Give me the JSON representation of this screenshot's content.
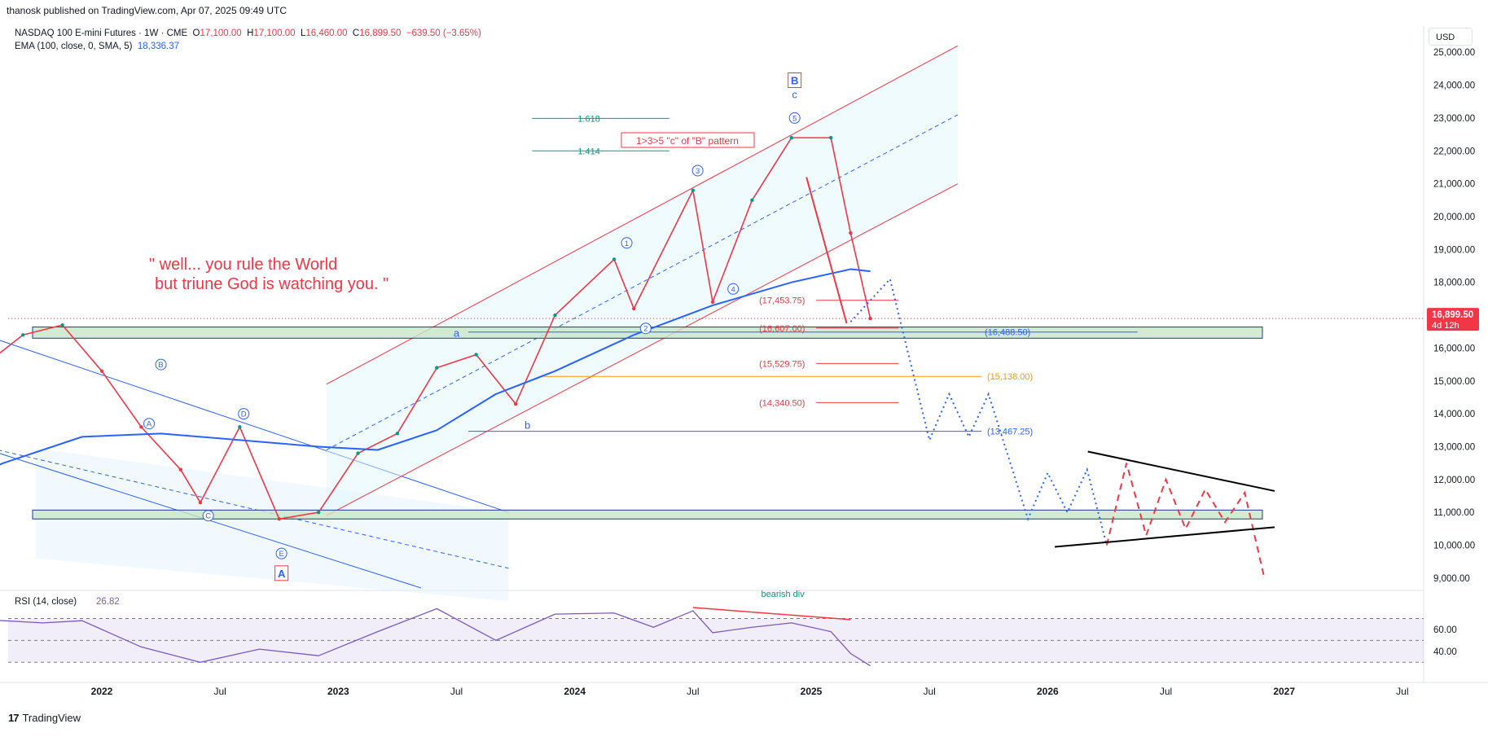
{
  "header": {
    "published": "thanosk published on TradingView.com, Apr 07, 2025 09:49 UTC",
    "symbol": "NASDAQ 100 E-mini Futures · 1W · CME",
    "open_label": "O",
    "open": "17,100.00",
    "high_label": "H",
    "high": "17,100.00",
    "low_label": "L",
    "low": "16,460.00",
    "close_label": "C",
    "close": "16,899.50",
    "change": "−639.50 (−3.65%)",
    "ema_label": "EMA (100, close, 0, SMA, 5)",
    "ema_value": "18,336.37",
    "currency": "USD"
  },
  "price_tag": {
    "price": "16,899.50",
    "countdown": "4d 12h"
  },
  "brand": {
    "logo": "17",
    "name": "TradingView"
  },
  "colors": {
    "up": "#089981",
    "down": "#f23645",
    "ema": "#2962ff",
    "channel": "#f23645",
    "rsi": "#7e57c2",
    "zone_fill": "#c8e6c9"
  },
  "chart_data": {
    "type": "line",
    "y_axis_ticks": [
      "25,000.00",
      "24,000.00",
      "23,000.00",
      "22,000.00",
      "21,000.00",
      "20,000.00",
      "19,000.00",
      "18,000.00",
      "17,000.00",
      "16,000.00",
      "15,000.00",
      "14,000.00",
      "13,000.00",
      "12,000.00",
      "11,000.00",
      "10,000.00",
      "9,000.00"
    ],
    "ylim": [
      8700,
      25600
    ],
    "x_axis_ticks": [
      "2022",
      "Jul",
      "2023",
      "Jul",
      "2024",
      "Jul",
      "2025",
      "Jul",
      "2026",
      "Jul",
      "2027",
      "Jul"
    ],
    "price_path": {
      "x": [
        "2021-06",
        "2021-09",
        "2021-11",
        "2022-01",
        "2022-03",
        "2022-05",
        "2022-06",
        "2022-08",
        "2022-10",
        "2022-12",
        "2023-02",
        "2023-04",
        "2023-06",
        "2023-08",
        "2023-10",
        "2023-12",
        "2024-03",
        "2024-04",
        "2024-07",
        "2024-08",
        "2024-10",
        "2024-12",
        "2025-02",
        "2025-03",
        "2025-04"
      ],
      "y": [
        15000,
        16400,
        16700,
        15300,
        13600,
        12300,
        11300,
        13600,
        10800,
        11000,
        12800,
        13400,
        15400,
        15800,
        14300,
        17000,
        18700,
        17200,
        20800,
        17400,
        20500,
        22400,
        22400,
        19500,
        16899.5
      ]
    },
    "ema_path": {
      "x": [
        "2021-04",
        "2021-08",
        "2021-12",
        "2022-04",
        "2022-08",
        "2022-12",
        "2023-03",
        "2023-06",
        "2023-09",
        "2023-12",
        "2024-04",
        "2024-08",
        "2024-12",
        "2025-03",
        "2025-04"
      ],
      "y": [
        11500,
        12500,
        13300,
        13400,
        13200,
        13000,
        12900,
        13500,
        14600,
        15300,
        16400,
        17300,
        18000,
        18400,
        18336.37
      ]
    },
    "levels": [
      {
        "label": "(17,453.75)",
        "value": 17453.75,
        "color": "#f23645"
      },
      {
        "label": "(16,607.00)",
        "value": 16607.0,
        "color": "#f23645"
      },
      {
        "label": "(16,488.50)",
        "value": 16488.5,
        "color": "#2962ff"
      },
      {
        "label": "(15,529.75)",
        "value": 15529.75,
        "color": "#f23645"
      },
      {
        "label": "(15,138.00)",
        "value": 15138.0,
        "color": "#ff9800"
      },
      {
        "label": "(14,340.50)",
        "value": 14340.5,
        "color": "#f23645"
      },
      {
        "label": "(13,467.25)",
        "value": 13467.25,
        "color": "#2962ff"
      }
    ],
    "fib_levels": [
      {
        "label": "1.618",
        "value": 22990
      },
      {
        "label": "1.414",
        "value": 22000
      }
    ],
    "support_zones": [
      {
        "from": 16300,
        "to": 16640
      },
      {
        "from": 10800,
        "to": 11070
      }
    ],
    "projection_blue": {
      "x": [
        "2025-03",
        "2025-05",
        "2025-07",
        "2025-08",
        "2025-09",
        "2025-10",
        "2025-12",
        "2026-01",
        "2026-02",
        "2026-03",
        "2026-04"
      ],
      "y": [
        16800,
        18100,
        13200,
        14600,
        13300,
        14600,
        10800,
        12200,
        11000,
        12300,
        10000
      ]
    },
    "projection_red": {
      "x": [
        "2026-04",
        "2026-05",
        "2026-06",
        "2026-07",
        "2026-08",
        "2026-09",
        "2026-10",
        "2026-11",
        "2026-12"
      ],
      "y": [
        10000,
        12500,
        10300,
        12000,
        10500,
        11700,
        10700,
        11600,
        9000
      ]
    },
    "wave_labels": {
      "A": "A",
      "B": "B",
      "c": "c",
      "a": "a",
      "b": "b",
      "circled": [
        "A",
        "B",
        "C",
        "D",
        "E",
        "1",
        "2",
        "3",
        "4",
        "5"
      ]
    },
    "annotation_quote_line1": "\" well... you rule the World",
    "annotation_quote_line2": "but triune God is watching you. \"",
    "annotation_box": "1>3>5 \"c\" of \"B\" pattern",
    "rsi": {
      "label": "RSI (14, close)",
      "value": "26.82",
      "ticks": [
        "60.00",
        "40.00"
      ],
      "bearish_label": "bearish div",
      "x": [
        "2021-06",
        "2021-10",
        "2021-12",
        "2022-03",
        "2022-06",
        "2022-09",
        "2022-12",
        "2023-03",
        "2023-06",
        "2023-09",
        "2023-12",
        "2024-03",
        "2024-05",
        "2024-07",
        "2024-08",
        "2024-10",
        "2024-12",
        "2025-02",
        "2025-03",
        "2025-04"
      ],
      "y": [
        70,
        66,
        68,
        44,
        30,
        42,
        36,
        58,
        79,
        50,
        74,
        75,
        62,
        77,
        57,
        62,
        66,
        58,
        38,
        26.82
      ]
    }
  }
}
